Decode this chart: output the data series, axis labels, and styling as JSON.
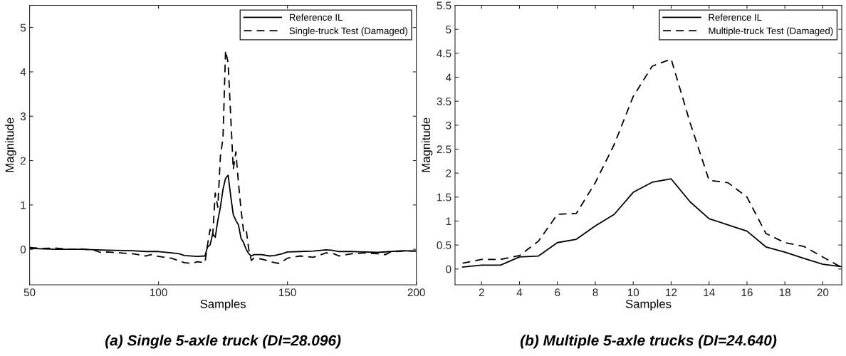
{
  "chart_data": [
    {
      "type": "line",
      "title": "(a) Single 5-axle truck (DI=28.096)",
      "xlabel": "Samples",
      "ylabel": "Magnitude",
      "xlim": [
        50,
        200
      ],
      "xticks": [
        50,
        100,
        150,
        200
      ],
      "ylim": [
        -0.8,
        5.5
      ],
      "yticks": [
        0,
        1,
        2,
        3,
        4,
        5
      ],
      "grid": false,
      "legend": "top right",
      "marker": "none",
      "series": [
        {
          "name": "Reference IL",
          "color": "#000000",
          "line_style": "solid",
          "x": [
            50,
            60,
            70,
            80,
            90,
            95,
            100,
            105,
            108,
            110,
            115,
            118,
            119,
            120,
            121,
            122,
            123,
            124,
            125,
            126,
            127,
            128,
            129,
            130,
            131,
            132,
            133,
            134,
            135,
            136,
            137,
            140,
            143,
            145,
            148,
            150,
            155,
            160,
            165,
            167,
            170,
            175,
            180,
            185,
            190,
            195,
            200
          ],
          "values": [
            0.02,
            0.0,
            0.0,
            -0.02,
            -0.03,
            -0.05,
            -0.05,
            -0.08,
            -0.1,
            -0.14,
            -0.16,
            -0.15,
            0.05,
            0.1,
            0.35,
            0.27,
            0.65,
            0.95,
            1.35,
            1.6,
            1.67,
            1.2,
            0.78,
            0.65,
            0.55,
            0.25,
            0.15,
            0.0,
            -0.1,
            -0.15,
            -0.12,
            -0.12,
            -0.15,
            -0.14,
            -0.1,
            -0.06,
            -0.05,
            -0.04,
            -0.01,
            -0.02,
            -0.05,
            -0.05,
            -0.06,
            -0.07,
            -0.05,
            -0.03,
            -0.04
          ]
        },
        {
          "name": "Single-truck Test (Damaged)",
          "color": "#000000",
          "line_style": "dashed",
          "x": [
            50,
            55,
            60,
            65,
            70,
            75,
            78,
            80,
            85,
            90,
            95,
            97,
            100,
            105,
            110,
            113,
            115,
            118,
            119,
            120,
            121,
            122,
            123,
            124,
            125,
            126,
            127,
            128,
            129,
            130,
            131,
            132,
            133,
            134,
            135,
            136,
            137,
            140,
            145,
            147,
            150,
            155,
            160,
            165,
            168,
            170,
            175,
            180,
            185,
            188,
            190,
            195,
            200
          ],
          "values": [
            0.04,
            0.02,
            0.03,
            0.0,
            0.01,
            -0.02,
            -0.08,
            -0.06,
            -0.08,
            -0.1,
            -0.15,
            -0.12,
            -0.16,
            -0.2,
            -0.3,
            -0.32,
            -0.28,
            -0.3,
            0.1,
            0.45,
            0.3,
            1.27,
            0.95,
            2.1,
            2.5,
            4.48,
            4.2,
            3.0,
            1.8,
            2.2,
            1.5,
            0.9,
            0.4,
            0.45,
            0.0,
            -0.25,
            -0.2,
            -0.22,
            -0.3,
            -0.32,
            -0.2,
            -0.15,
            -0.18,
            -0.08,
            -0.1,
            -0.15,
            -0.1,
            -0.08,
            -0.1,
            -0.12,
            -0.06,
            -0.04,
            -0.04
          ]
        }
      ]
    },
    {
      "type": "line",
      "title": "(b) Multiple 5-axle trucks (DI=24.640)",
      "xlabel": "Samples",
      "ylabel": "Magnitude",
      "xlim": [
        0.6,
        21
      ],
      "xticks": [
        2,
        4,
        6,
        8,
        10,
        12,
        14,
        16,
        18,
        20
      ],
      "ylim": [
        -0.33,
        5.5
      ],
      "yticks": [
        0,
        0.5,
        1,
        1.5,
        2,
        2.5,
        3,
        3.5,
        4,
        4.5,
        5,
        5.5
      ],
      "grid": false,
      "legend": "top right",
      "marker": "none",
      "series": [
        {
          "name": "Reference IL",
          "color": "#000000",
          "line_style": "solid",
          "x": [
            1,
            2,
            3,
            4,
            5,
            6,
            7,
            8,
            9,
            10,
            11,
            12,
            13,
            14,
            15,
            16,
            17,
            18,
            19,
            20,
            21
          ],
          "values": [
            0.04,
            0.08,
            0.08,
            0.25,
            0.27,
            0.55,
            0.62,
            0.9,
            1.14,
            1.6,
            1.81,
            1.88,
            1.4,
            1.05,
            0.92,
            0.79,
            0.46,
            0.35,
            0.22,
            0.1,
            0.05
          ]
        },
        {
          "name": "Multiple-truck Test (Damaged)",
          "color": "#000000",
          "line_style": "dashed",
          "x": [
            1,
            2,
            3,
            4,
            5,
            6,
            7,
            8,
            9,
            10,
            11,
            12,
            13,
            14,
            15,
            16,
            17,
            18,
            19,
            20,
            21
          ],
          "values": [
            0.12,
            0.2,
            0.2,
            0.28,
            0.58,
            1.14,
            1.16,
            1.8,
            2.6,
            3.6,
            4.23,
            4.38,
            3.05,
            1.85,
            1.8,
            1.5,
            0.74,
            0.55,
            0.47,
            0.25,
            0.03
          ]
        }
      ]
    }
  ]
}
